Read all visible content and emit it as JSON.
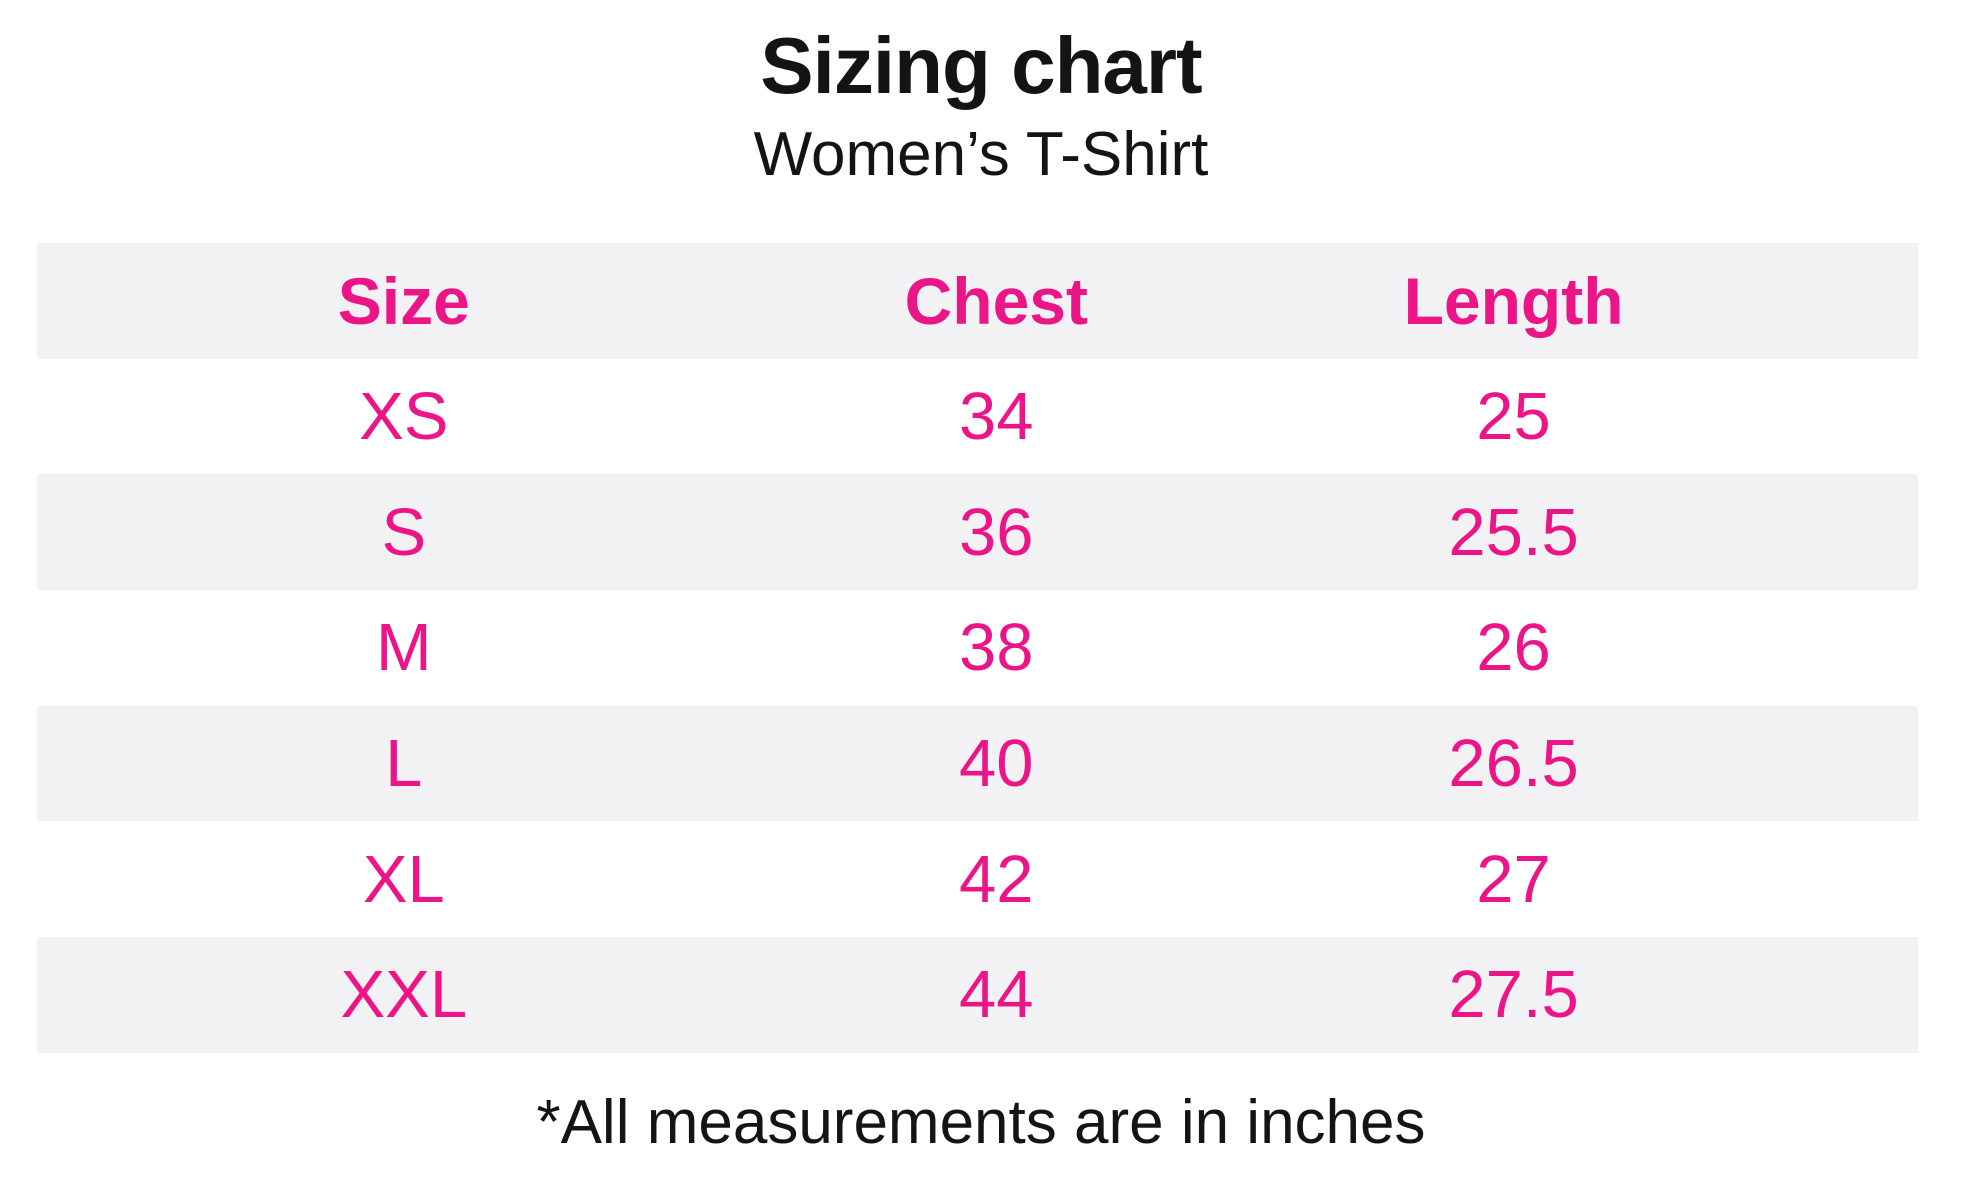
{
  "page": {
    "title": "Sizing chart",
    "subtitle": "Women’s T-Shirt",
    "footnote": "*All measurements are in inches"
  },
  "colors": {
    "accent_pink": "#EC1587",
    "row_stripe_gray": "#F2F2F4",
    "text_black": "#141414"
  },
  "chart_data": {
    "type": "table",
    "title": "Sizing chart",
    "subtitle": "Women’s T-Shirt",
    "columns": [
      "Size",
      "Chest",
      "Length"
    ],
    "rows": [
      [
        "XS",
        "34",
        "25"
      ],
      [
        "S",
        "36",
        "25.5"
      ],
      [
        "M",
        "38",
        "26"
      ],
      [
        "L",
        "40",
        "26.5"
      ],
      [
        "XL",
        "42",
        "27"
      ],
      [
        "XXL",
        "44",
        "27.5"
      ]
    ],
    "units": "inches",
    "footnote": "*All measurements are in inches",
    "layout": {
      "striped_rows": true,
      "shaded_rows": [
        "header",
        "S",
        "L",
        "XXL"
      ],
      "column_alignment": "center",
      "grid_lines": false
    }
  }
}
